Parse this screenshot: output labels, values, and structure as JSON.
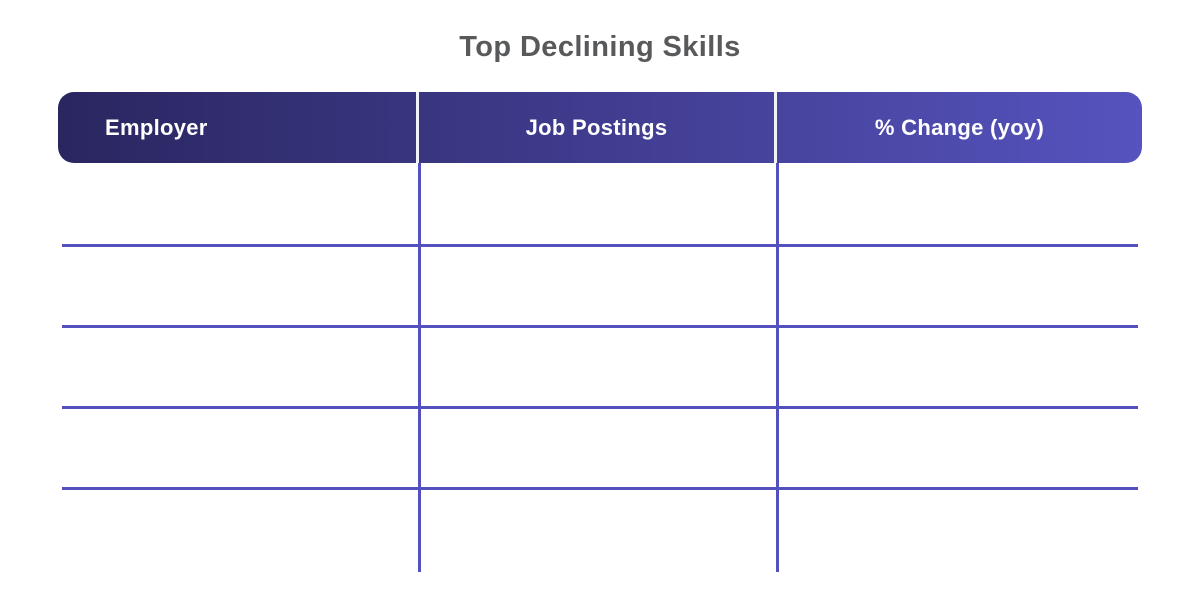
{
  "page": {
    "title": "Top Declining Skills"
  },
  "chart_data": {
    "type": "table",
    "title": "Top Declining Skills",
    "columns": [
      "Employer",
      "Job Postings",
      "% Change (yoy)"
    ],
    "rows": [
      [
        "",
        "",
        ""
      ],
      [
        "",
        "",
        ""
      ],
      [
        "",
        "",
        ""
      ],
      [
        "",
        "",
        ""
      ],
      [
        "",
        "",
        ""
      ]
    ],
    "layout": {
      "num_rows": 5,
      "num_columns": 3,
      "grid": "on",
      "header_style": "gradient-pill"
    }
  },
  "colors": {
    "background": "#ffffff",
    "title_text": "#58595b",
    "header_gradient_start": "#2a2660",
    "header_gradient_end": "#5653be",
    "header_text": "#ffffff",
    "header_divider": "#f2f2fa",
    "grid_line": "#5450be"
  }
}
